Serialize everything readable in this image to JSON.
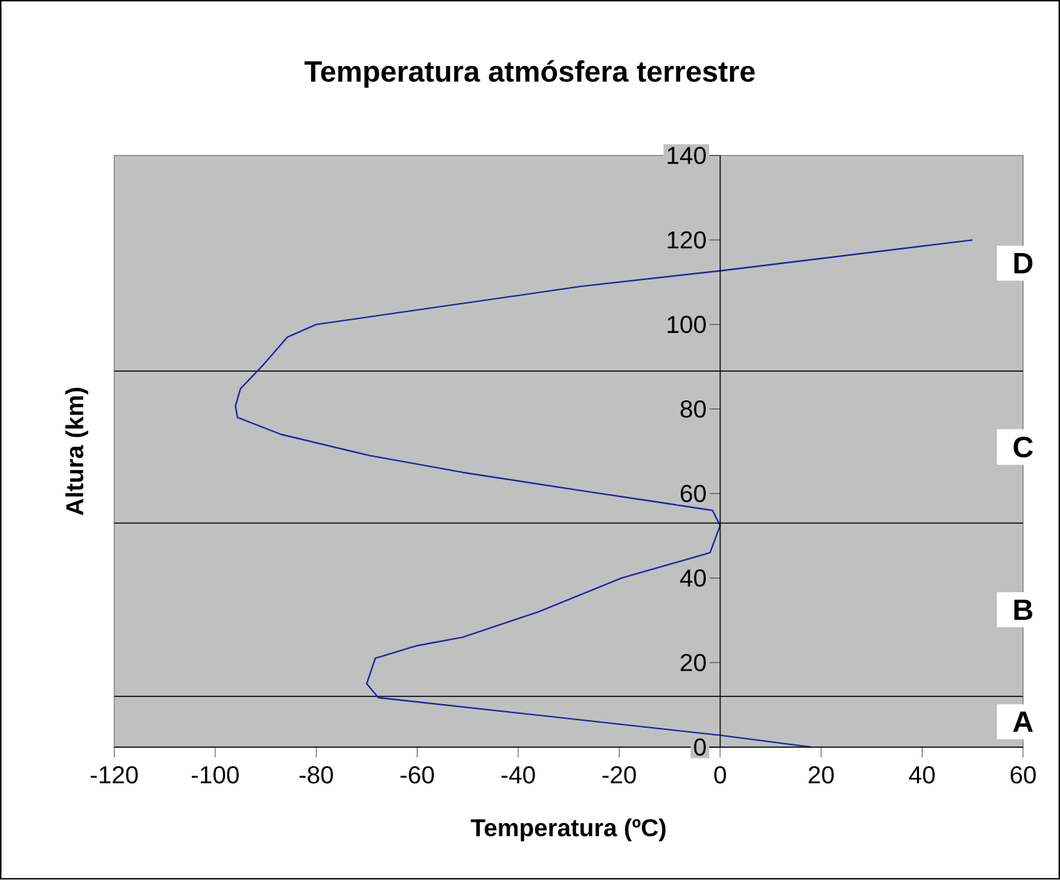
{
  "chart_data": {
    "type": "line",
    "title": "Temperatura atmósfera terrestre",
    "xlabel": "Temperatura (ºC)",
    "ylabel": "Altura (km)",
    "series": [
      {
        "color": "#2020a0",
        "x": [
          18,
          0,
          -67.7,
          -70,
          -68.3,
          -60,
          -51,
          -36,
          -19.5,
          -2,
          0,
          -1.5,
          -12.5,
          -27.6,
          -51,
          -69.5,
          -87,
          -95.6,
          -96,
          -95,
          -90.6,
          -85.7,
          -80,
          -62.5,
          -27.6,
          0,
          50
        ],
        "values": [
          0,
          2.8,
          11.7,
          15,
          21,
          24,
          26,
          32,
          40,
          46,
          52.4,
          56,
          58,
          60.7,
          65,
          69,
          74,
          78,
          80.7,
          84.8,
          90.3,
          97,
          100,
          103,
          109,
          112.7,
          120
        ]
      }
    ],
    "xlim": [
      -120,
      60
    ],
    "xticks": [
      -120,
      -100,
      -80,
      -60,
      -40,
      -20,
      0,
      20,
      40,
      60
    ],
    "ylim": [
      0,
      140
    ],
    "yticks": [
      0,
      20,
      40,
      60,
      80,
      100,
      120,
      140
    ],
    "ref_lines": [
      {
        "axis": "y",
        "value": 12,
        "color": "#000000"
      },
      {
        "axis": "y",
        "value": 53,
        "color": "#000000"
      },
      {
        "axis": "y",
        "value": 89,
        "color": "#000000"
      }
    ],
    "annotations": [
      "A",
      "B",
      "C",
      "D"
    ],
    "grid": false,
    "marker": "none",
    "line_style": "solid"
  }
}
